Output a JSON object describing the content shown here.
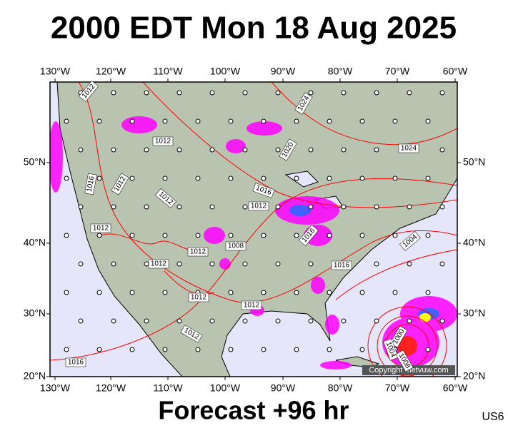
{
  "header": {
    "title": "2000 EDT Mon 18 Aug 2025"
  },
  "map": {
    "top_labels": [
      "130°W",
      "120°W",
      "110°W",
      "100°W",
      "90°W",
      "80°W",
      "70°W",
      "60°W"
    ],
    "bottom_labels": [
      "130°W",
      "120°W",
      "110°W",
      "100°W",
      "90°W",
      "80°W",
      "70°W",
      "60°W"
    ],
    "left_labels": [
      "50°N",
      "40°N",
      "30°N",
      "20°N"
    ],
    "right_labels": [
      "50°N",
      "40°N",
      "30°N",
      "20°N"
    ],
    "isobar_labels": [
      "1012",
      "1024",
      "1012",
      "1020",
      "1024",
      "1012",
      "1016",
      "1012",
      "1016",
      "1012",
      "1012",
      "1016",
      "1004",
      "1012",
      "1008",
      "1012",
      "1016",
      "1012",
      "1012",
      "1012",
      "1016",
      "1000",
      "1004",
      "1008"
    ],
    "copyright": "Copyright metvuw.com"
  },
  "footer": {
    "forecast": "Forecast +96 hr",
    "region": "US6"
  }
}
